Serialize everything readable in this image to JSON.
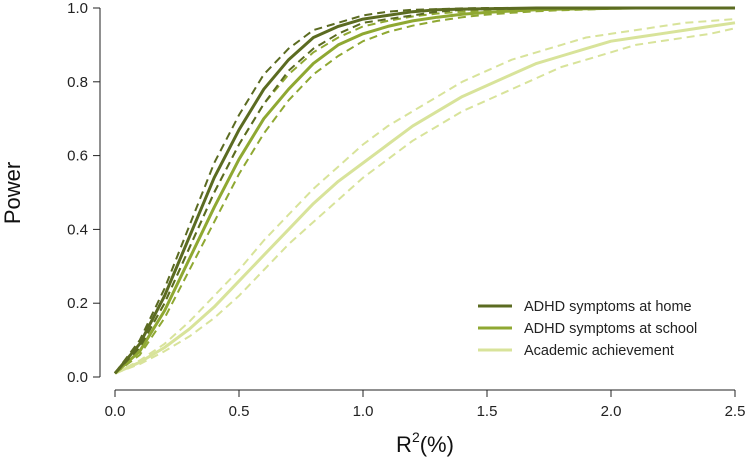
{
  "chart_data": {
    "type": "line",
    "xlabel": "R",
    "xlabel_superscript": "2",
    "xlabel_suffix": "(%)",
    "ylabel": "Power",
    "xlim": [
      0,
      2.5
    ],
    "ylim": [
      0,
      1.0
    ],
    "x_ticks": [
      0.0,
      0.5,
      1.0,
      1.5,
      2.0,
      2.5
    ],
    "x_tick_labels": [
      "0.0",
      "0.5",
      "1.0",
      "1.5",
      "2.0",
      "2.5"
    ],
    "y_ticks": [
      0.0,
      0.2,
      0.4,
      0.6,
      0.8,
      1.0
    ],
    "y_tick_labels": [
      "0.0",
      "0.2",
      "0.4",
      "0.6",
      "0.8",
      "1.0"
    ],
    "grid": false,
    "legend_position": "bottom-right",
    "x": [
      0,
      0.1,
      0.2,
      0.3,
      0.4,
      0.5,
      0.6,
      0.7,
      0.8,
      0.9,
      1.0,
      1.1,
      1.2,
      1.3,
      1.4,
      1.5,
      1.6,
      1.7,
      1.8,
      1.9,
      2.0,
      2.1,
      2.2,
      2.3,
      2.4,
      2.5
    ],
    "series": [
      {
        "name": "ADHD symptoms at home",
        "color": "#5b6b21",
        "values": [
          0.01,
          0.09,
          0.22,
          0.38,
          0.54,
          0.67,
          0.78,
          0.86,
          0.92,
          0.95,
          0.97,
          0.98,
          0.99,
          0.995,
          0.997,
          0.998,
          0.999,
          1.0,
          1.0,
          1.0,
          1.0,
          1.0,
          1.0,
          1.0,
          1.0,
          1.0
        ],
        "upper": [
          0.01,
          0.1,
          0.24,
          0.41,
          0.58,
          0.71,
          0.82,
          0.89,
          0.94,
          0.96,
          0.98,
          0.99,
          0.995,
          0.997,
          0.999,
          1.0,
          1.0,
          1.0,
          1.0,
          1.0,
          1.0,
          1.0,
          1.0,
          1.0,
          1.0,
          1.0
        ],
        "lower": [
          0.01,
          0.08,
          0.2,
          0.35,
          0.5,
          0.63,
          0.74,
          0.83,
          0.89,
          0.93,
          0.96,
          0.97,
          0.98,
          0.99,
          0.995,
          0.997,
          0.998,
          0.999,
          1.0,
          1.0,
          1.0,
          1.0,
          1.0,
          1.0,
          1.0,
          1.0
        ]
      },
      {
        "name": "ADHD symptoms at school",
        "color": "#8fa832",
        "values": [
          0.01,
          0.07,
          0.18,
          0.32,
          0.46,
          0.59,
          0.7,
          0.78,
          0.85,
          0.9,
          0.93,
          0.95,
          0.965,
          0.975,
          0.983,
          0.988,
          0.992,
          0.995,
          0.997,
          0.998,
          0.999,
          1.0,
          1.0,
          1.0,
          1.0,
          1.0
        ],
        "upper": [
          0.01,
          0.08,
          0.2,
          0.35,
          0.5,
          0.63,
          0.74,
          0.82,
          0.88,
          0.92,
          0.95,
          0.965,
          0.977,
          0.985,
          0.99,
          0.994,
          0.996,
          0.998,
          0.999,
          1.0,
          1.0,
          1.0,
          1.0,
          1.0,
          1.0,
          1.0
        ],
        "lower": [
          0.01,
          0.06,
          0.16,
          0.29,
          0.42,
          0.55,
          0.66,
          0.75,
          0.82,
          0.87,
          0.91,
          0.935,
          0.952,
          0.965,
          0.975,
          0.982,
          0.987,
          0.991,
          0.994,
          0.996,
          0.998,
          0.999,
          1.0,
          1.0,
          1.0,
          1.0
        ]
      },
      {
        "name": "Academic achievement",
        "color": "#d8e39a",
        "values": [
          0.01,
          0.04,
          0.08,
          0.13,
          0.19,
          0.26,
          0.33,
          0.4,
          0.47,
          0.53,
          0.58,
          0.63,
          0.68,
          0.72,
          0.76,
          0.79,
          0.82,
          0.85,
          0.87,
          0.89,
          0.91,
          0.92,
          0.93,
          0.94,
          0.95,
          0.96
        ],
        "upper": [
          0.01,
          0.045,
          0.09,
          0.15,
          0.22,
          0.29,
          0.37,
          0.44,
          0.51,
          0.57,
          0.63,
          0.68,
          0.72,
          0.76,
          0.8,
          0.83,
          0.86,
          0.88,
          0.9,
          0.92,
          0.93,
          0.94,
          0.95,
          0.96,
          0.965,
          0.97
        ],
        "lower": [
          0.01,
          0.035,
          0.07,
          0.11,
          0.16,
          0.22,
          0.29,
          0.36,
          0.42,
          0.48,
          0.54,
          0.59,
          0.64,
          0.68,
          0.72,
          0.75,
          0.78,
          0.81,
          0.84,
          0.86,
          0.88,
          0.9,
          0.91,
          0.92,
          0.93,
          0.945
        ]
      }
    ]
  }
}
